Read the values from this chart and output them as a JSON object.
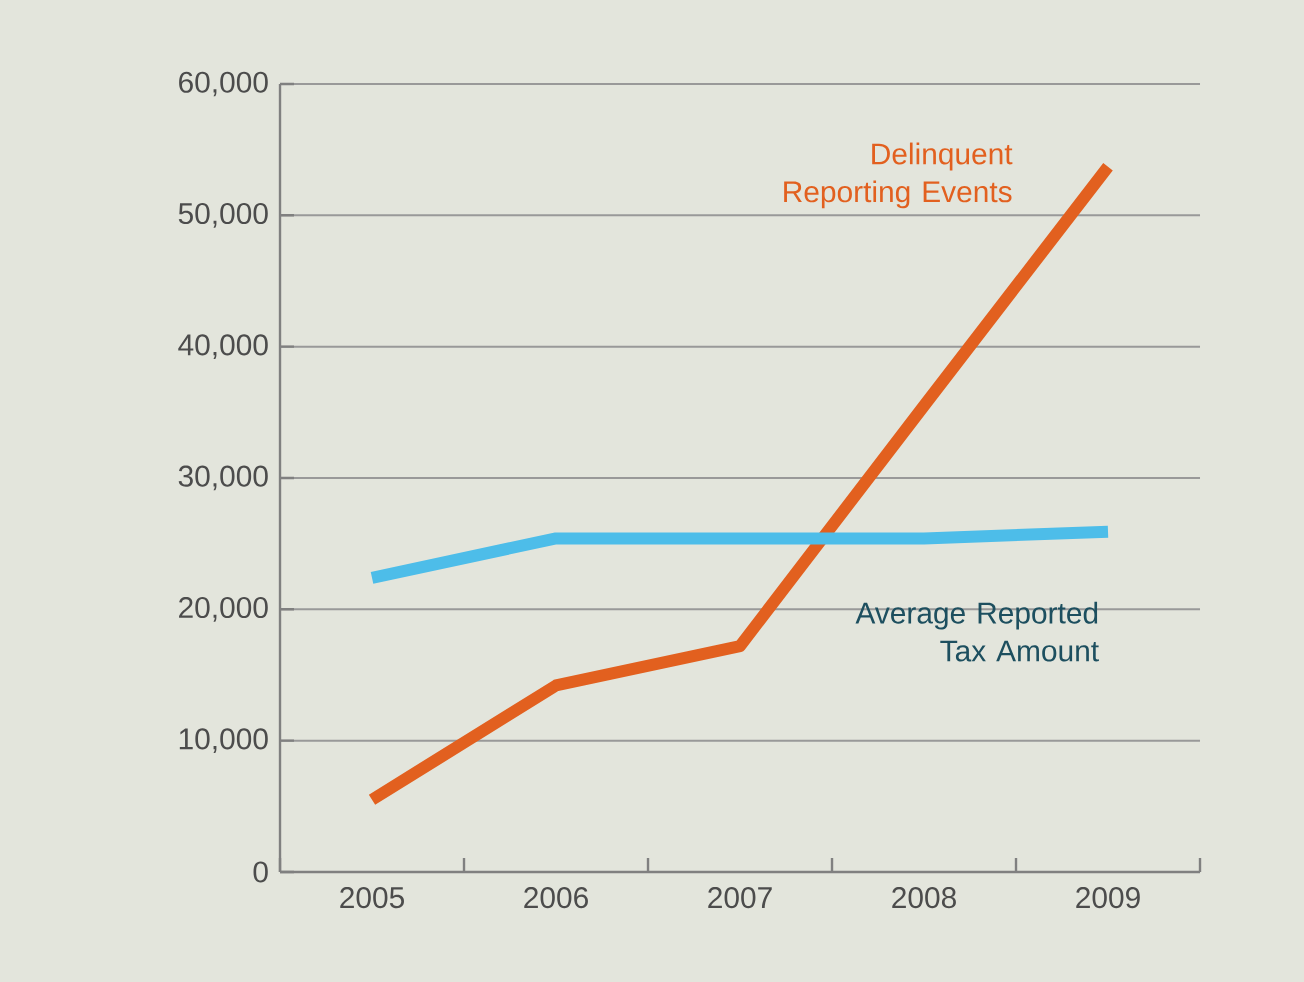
{
  "chart_data": {
    "type": "line",
    "categories": [
      "2005",
      "2006",
      "2007",
      "2008",
      "2009"
    ],
    "series": [
      {
        "name": "Delinquent Reporting Events",
        "color": "#e2601f",
        "values": [
          5500,
          14200,
          17200,
          35500,
          53700
        ]
      },
      {
        "name": "Average Reported Tax Amount",
        "color": "#4dbde9",
        "values": [
          22400,
          25400,
          25400,
          25400,
          25900
        ]
      }
    ],
    "ylim": [
      0,
      60000
    ],
    "yticks": [
      0,
      {
        "value": 10000,
        "label": "10,000"
      },
      {
        "value": 20000,
        "label": "20,000"
      },
      {
        "value": 30000,
        "label": "30,000"
      },
      {
        "value": 40000,
        "label": "40,000"
      },
      {
        "value": 50000,
        "label": "50,000"
      },
      {
        "value": 60000,
        "label": "60,000"
      }
    ],
    "grid": "y",
    "marker": "none",
    "line_style": "solid"
  }
}
